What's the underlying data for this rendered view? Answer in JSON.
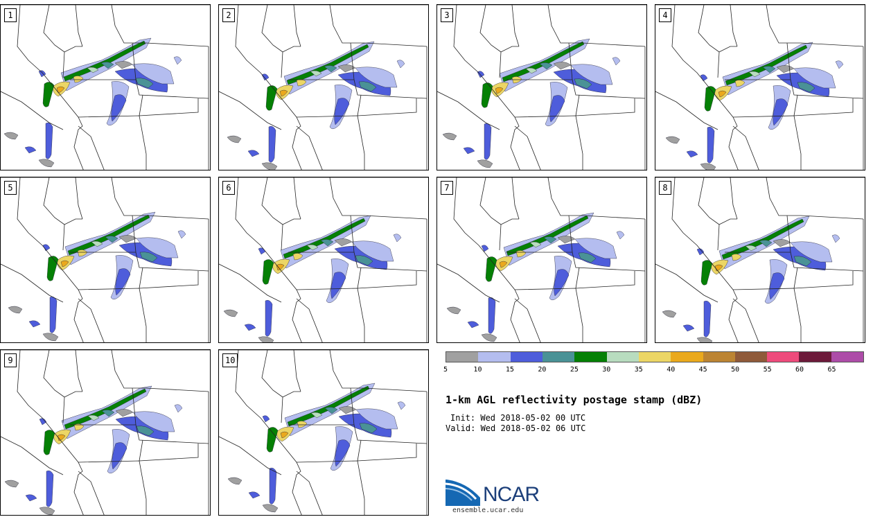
{
  "colors": {
    "5": "#a0a0a0",
    "10": "#b4bdef",
    "15": "#4e5ddb",
    "20": "#4a9296",
    "25": "#058005",
    "30": "#b8dcbf",
    "35": "#ecd665",
    "40": "#eaa91d",
    "45": "#bc8433",
    "50": "#8f5a3a",
    "55": "#ee4b7c",
    "60": "#6c1a3a",
    "65": "#ad4ca8"
  },
  "members": [
    "1",
    "2",
    "3",
    "4",
    "5",
    "6",
    "7",
    "8",
    "9",
    "10"
  ],
  "legend": {
    "ticks": [
      "5",
      "10",
      "15",
      "20",
      "25",
      "30",
      "35",
      "40",
      "45",
      "50",
      "55",
      "60",
      "65"
    ],
    "title": "1-km AGL reflectivity postage stamp (dBZ)",
    "init": "Init: Wed 2018-05-02 00 UTC",
    "valid": "Valid: Wed 2018-05-02 06 UTC"
  },
  "logo": {
    "name": "NCAR",
    "url": "ensemble.ucar.edu"
  }
}
